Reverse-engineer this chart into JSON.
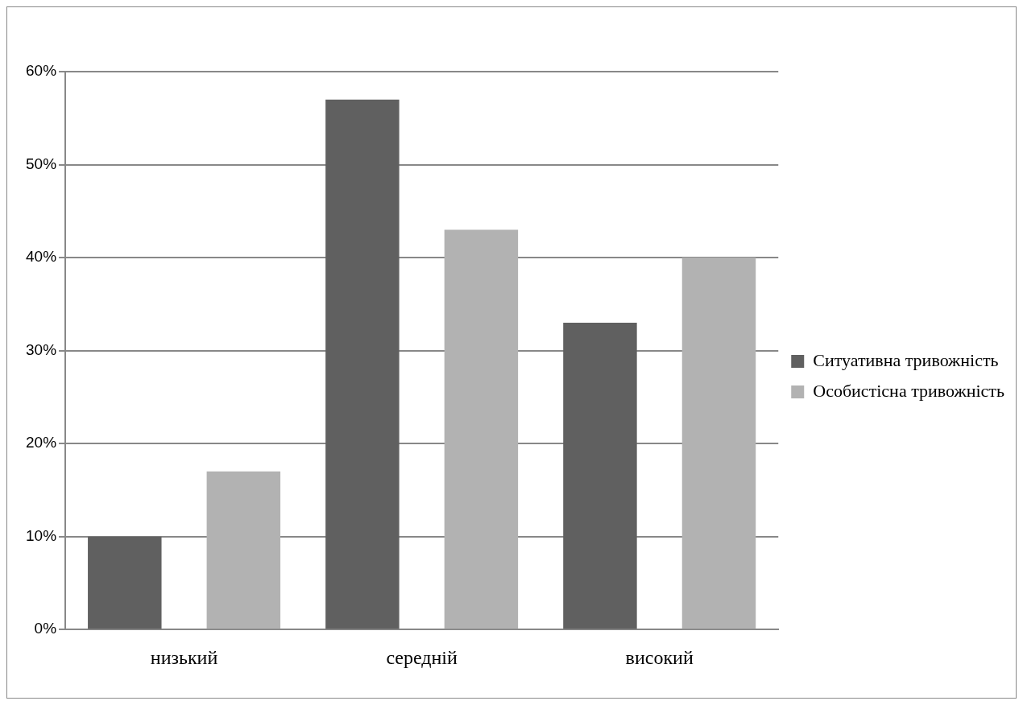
{
  "chart_data": {
    "type": "bar",
    "categories": [
      "низький",
      "середній",
      "високий"
    ],
    "series": [
      {
        "name": "Ситуативна тривожність",
        "color": "#606060",
        "values": [
          10,
          57,
          33
        ]
      },
      {
        "name": "Особистісна тривожність",
        "color": "#b2b2b2",
        "values": [
          17,
          43,
          40
        ]
      }
    ],
    "ylim": [
      0,
      60
    ],
    "yticks": [
      {
        "value": 0,
        "label": "0%"
      },
      {
        "value": 10,
        "label": "10%"
      },
      {
        "value": 20,
        "label": "20%"
      },
      {
        "value": 30,
        "label": "30%"
      },
      {
        "value": 40,
        "label": "40%"
      },
      {
        "value": 50,
        "label": "50%"
      },
      {
        "value": 60,
        "label": "60%"
      }
    ],
    "grid": "y",
    "legend": "right"
  }
}
